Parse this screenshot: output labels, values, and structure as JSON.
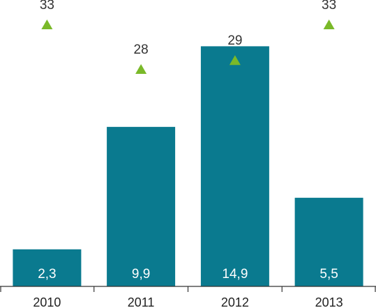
{
  "chart_data": {
    "type": "bar",
    "categories": [
      "2010",
      "2011",
      "2012",
      "2013"
    ],
    "series": [
      {
        "kind": "bar",
        "values": [
          2.3,
          9.9,
          14.9,
          5.5
        ],
        "value_labels": [
          "2,3",
          "9,9",
          "14,9",
          "5,5"
        ]
      },
      {
        "kind": "marker",
        "marker": "triangle-up",
        "values": [
          33,
          28,
          29,
          33
        ],
        "value_labels": [
          "33",
          "28",
          "29",
          "33"
        ]
      }
    ],
    "bar_ylim": [
      0,
      16
    ],
    "marker_ylim": [
      0,
      33
    ],
    "grid": false,
    "legend": "none",
    "colors": {
      "bar": "#0a7a8f",
      "marker": "#7ab929",
      "axis": "#333333"
    }
  }
}
